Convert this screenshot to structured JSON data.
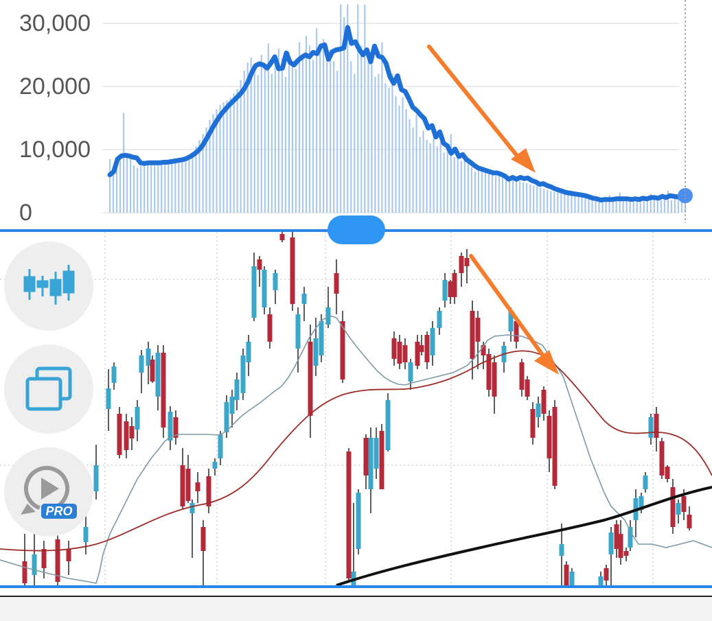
{
  "chart_data": [
    {
      "type": "bar",
      "yticks": [
        "30,000",
        "20,000",
        "10,000",
        "0"
      ],
      "ylim": [
        0,
        33000
      ],
      "grid": true,
      "colors": {
        "bars": "#a9c8ee",
        "line": "#1e6fd6",
        "grid": "#e6e6e6",
        "arrow": "#f57c2c"
      },
      "values": [
        8500,
        7200,
        7800,
        9200,
        15800,
        8900,
        9000,
        7500,
        7100,
        7400,
        7800,
        7600,
        7700,
        7800,
        7900,
        7700,
        7800,
        8000,
        8100,
        8200,
        8300,
        8600,
        8800,
        9100,
        9600,
        10500,
        11500,
        12500,
        13500,
        14700,
        15600,
        16400,
        17100,
        17500,
        17800,
        18200,
        18900,
        19600,
        21000,
        22500,
        23800,
        24600,
        23100,
        21800,
        25000,
        23500,
        26800,
        22000,
        24700,
        26000,
        24500,
        21500,
        25500,
        24000,
        22800,
        27000,
        25000,
        28000,
        26500,
        24200,
        29200,
        26000,
        27500,
        26000,
        25800,
        24000,
        22500,
        33000,
        31000,
        33500,
        24000,
        22000,
        33000,
        26500,
        33000,
        24000,
        23500,
        21500,
        22000,
        27000,
        20500,
        19800,
        22000,
        18500,
        17000,
        18300,
        16400,
        14800,
        13500,
        15500,
        12000,
        13000,
        11500,
        11000,
        12500,
        10500,
        11200,
        9500,
        10000,
        12500,
        8800,
        9800,
        8200,
        9200,
        7800,
        7200,
        6500,
        7000,
        6800,
        6500,
        6200,
        6000,
        5800,
        5900,
        5700,
        5600,
        5500,
        5300,
        5200,
        5000,
        4800,
        4700,
        4500,
        4300,
        4200,
        4000,
        3800,
        3600,
        3400,
        3300,
        3200,
        3100,
        3000,
        2900,
        2800,
        2700,
        2600,
        2500,
        2400,
        2300,
        2200,
        2100,
        2000,
        1900,
        1800,
        2800,
        1900,
        1800,
        3200,
        2000,
        1900,
        1800,
        1700,
        1800,
        1900,
        2000,
        2100,
        3000,
        2200,
        2100,
        2000,
        2100,
        3500,
        2000,
        2300,
        2200,
        2100,
        2400
      ],
      "moving_average": [
        6000,
        6500,
        8500,
        9000,
        9100,
        9000,
        8800,
        8700,
        7900,
        7800,
        7900,
        7900,
        7900,
        7900,
        8000,
        8000,
        8100,
        8200,
        8300,
        8400,
        8600,
        8900,
        9300,
        9800,
        10500,
        11500,
        12600,
        13700,
        14700,
        15600,
        16300,
        17000,
        17600,
        18200,
        18800,
        19600,
        20700,
        22200,
        23300,
        23600,
        23400,
        22900,
        23700,
        24700,
        22800,
        22900,
        25300,
        23800,
        23400,
        24100,
        24600,
        25000,
        24700,
        25400,
        25200,
        26400,
        26600,
        24300,
        25500,
        25800,
        25900,
        26100,
        29900,
        26800,
        27100,
        25900,
        25000,
        25800,
        23900,
        26400,
        24800,
        24600,
        23700,
        21600,
        20500,
        21700,
        19500,
        19200,
        18000,
        16700,
        16200,
        15500,
        14900,
        13400,
        13800,
        12000,
        12800,
        11000,
        10600,
        9400,
        10100,
        8900,
        9200,
        8400,
        8000,
        7500,
        7100,
        6900,
        6700,
        6500,
        6300,
        6300,
        6100,
        5800,
        5300,
        5600,
        5300,
        5600,
        5400,
        5500,
        5100,
        4900,
        4500,
        4600,
        4300,
        4100,
        3800,
        3600,
        3400,
        3200,
        3100,
        3000,
        2900,
        2800,
        2700,
        2500,
        2300,
        2200,
        2000,
        2100,
        2100,
        2100,
        2200,
        2200,
        2200,
        2200,
        2100,
        2200,
        2100,
        2300,
        2200,
        2400,
        2400,
        2300,
        2600,
        2400,
        2700,
        2600,
        2500,
        2600,
        2700
      ]
    },
    {
      "type": "candlestick",
      "axes": "unlabeled",
      "colors": {
        "up": "#3aa6c9",
        "down": "#b52a3a",
        "ma_short": "#7b9aa5",
        "ma_mid": "#9c2a26",
        "ma_long": "#111111",
        "arrow": "#f57c2c"
      }
    }
  ],
  "toolbar": {
    "buttons": [
      {
        "icon": "candlestick-chart-icon"
      },
      {
        "icon": "copy-windows-icon"
      },
      {
        "icon": "replay-icon",
        "badge": "PRO"
      }
    ]
  }
}
